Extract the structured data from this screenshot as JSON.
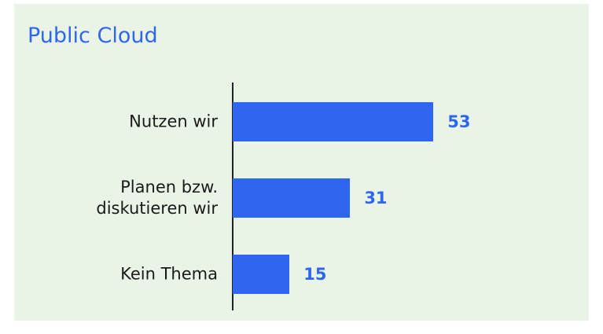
{
  "chart_data": {
    "type": "bar",
    "orientation": "horizontal",
    "title": "Public Cloud",
    "categories": [
      "Nutzen wir",
      "Planen bzw.\ndiskutieren wir",
      "Kein Thema"
    ],
    "values": [
      53,
      31,
      15
    ],
    "color": "#2f66ef",
    "xlim": [
      0,
      60
    ]
  }
}
